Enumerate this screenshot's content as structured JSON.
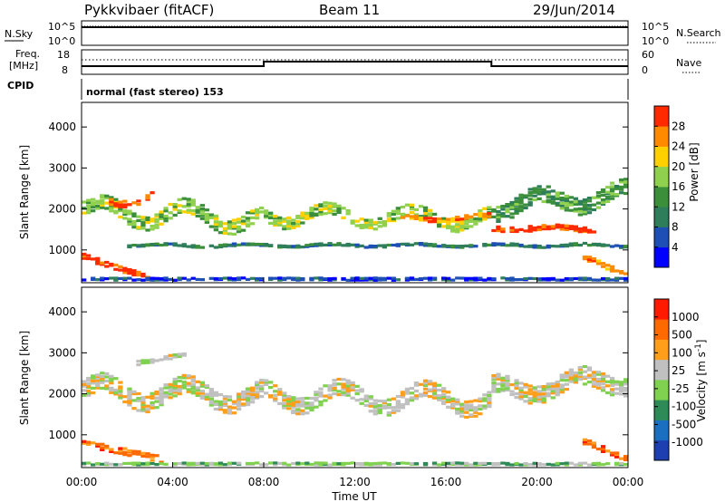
{
  "header": {
    "title": "Pykkvibaer (fitACF)",
    "beam": "Beam 11",
    "date": "29/Jun/2014"
  },
  "noise_panel": {
    "left_label": "N.Sky",
    "right_label": "N.Search",
    "left_ticks": [
      "10^5",
      "10^0"
    ],
    "right_ticks": [
      "10^5",
      "10^0"
    ]
  },
  "freq_panel": {
    "left_label_1": "Freq.",
    "left_label_2": "[MHz]",
    "right_label": "Nave",
    "left_ticks": [
      "18",
      "8"
    ],
    "right_ticks": [
      "60",
      "0"
    ]
  },
  "cpid": {
    "label": "CPID",
    "text": "normal (fast stereo) 153"
  },
  "colors": {
    "power": [
      "#0000ff",
      "#1d4fb5",
      "#2e7d5b",
      "#3b8f3b",
      "#8fd14f",
      "#ffd000",
      "#ff8a00",
      "#ff2a00"
    ],
    "velocity": [
      "#1d3fb0",
      "#1a6fc0",
      "#2e8b57",
      "#7fd14f",
      "#c0c0c0",
      "#ff9e1a",
      "#ff6a00",
      "#ff1a00"
    ]
  },
  "chart_data": [
    {
      "type": "heatmap",
      "name": "power-panel",
      "ylabel": "Slant Range [km]",
      "xlabel": "",
      "xlim": [
        0,
        24
      ],
      "ylim": [
        200,
        4600
      ],
      "yticks": [
        "1000",
        "2000",
        "3000",
        "4000"
      ],
      "xticks": [],
      "colorbar": {
        "label": "Power [dB]",
        "ticks": [
          "4",
          "8",
          "12",
          "16",
          "20",
          "24",
          "28"
        ]
      },
      "bands": [
        {
          "start": 0.0,
          "end": 8.0,
          "center_start": 2000,
          "center_end": 1800,
          "amp": 250,
          "width": 380,
          "level": 4
        },
        {
          "start": 1.2,
          "end": 3.2,
          "center_start": 2200,
          "center_end": 2400,
          "amp": 120,
          "width": 180,
          "level": 7
        },
        {
          "start": 8.0,
          "end": 18.0,
          "center_start": 1900,
          "center_end": 1800,
          "amp": 200,
          "width": 300,
          "level": 4
        },
        {
          "start": 14.0,
          "end": 18.0,
          "center_start": 1800,
          "center_end": 1850,
          "amp": 60,
          "width": 120,
          "level": 6
        },
        {
          "start": 18.0,
          "end": 22.5,
          "center_start": 1580,
          "center_end": 1560,
          "amp": 40,
          "width": 150,
          "level": 7
        },
        {
          "start": 18.0,
          "end": 24.0,
          "center_start": 2100,
          "center_end": 2400,
          "amp": 200,
          "width": 420,
          "level": 3
        },
        {
          "start": 0.0,
          "end": 3.0,
          "center_start": 900,
          "center_end": 350,
          "amp": 0,
          "width": 150,
          "level": 7
        },
        {
          "start": 0.0,
          "end": 24.0,
          "center_start": 330,
          "center_end": 330,
          "amp": 0,
          "width": 70,
          "level": 1
        },
        {
          "start": 2.0,
          "end": 24.0,
          "center_start": 1150,
          "center_end": 1150,
          "amp": 30,
          "width": 60,
          "level": 2
        },
        {
          "start": 22.0,
          "end": 24.0,
          "center_start": 900,
          "center_end": 400,
          "amp": 0,
          "width": 150,
          "level": 6
        }
      ]
    },
    {
      "type": "heatmap",
      "name": "velocity-panel",
      "ylabel": "Slant Range [km]",
      "xlabel": "Time UT",
      "xlim": [
        0,
        24
      ],
      "ylim": [
        200,
        4600
      ],
      "yticks": [
        "1000",
        "2000",
        "3000",
        "4000"
      ],
      "xticks": [
        "00:00",
        "04:00",
        "08:00",
        "12:00",
        "16:00",
        "20:00",
        "00:00"
      ],
      "colorbar": {
        "label": "Velocity [m s^-1]",
        "ticks": [
          "1000",
          "500",
          "100",
          "25",
          "-25",
          "-100",
          "-500",
          "-1000"
        ]
      },
      "bands": [
        {
          "start": 0.0,
          "end": 8.0,
          "center_start": 2100,
          "center_end": 2000,
          "amp": 250,
          "width": 450,
          "level": 4
        },
        {
          "start": 8.0,
          "end": 18.0,
          "center_start": 2000,
          "center_end": 1900,
          "amp": 250,
          "width": 420,
          "level": 4
        },
        {
          "start": 18.0,
          "end": 24.0,
          "center_start": 2100,
          "center_end": 2400,
          "amp": 200,
          "width": 450,
          "level": 4
        },
        {
          "start": 0.0,
          "end": 3.5,
          "center_start": 850,
          "center_end": 450,
          "amp": 0,
          "width": 180,
          "level": 6
        },
        {
          "start": 0.0,
          "end": 24.0,
          "center_start": 330,
          "center_end": 330,
          "amp": 0,
          "width": 60,
          "level": 3
        },
        {
          "start": 2.5,
          "end": 4.5,
          "center_start": 2800,
          "center_end": 3000,
          "amp": 0,
          "width": 120,
          "level": 4
        },
        {
          "start": 22.0,
          "end": 24.0,
          "center_start": 900,
          "center_end": 450,
          "amp": 0,
          "width": 150,
          "level": 6
        }
      ]
    }
  ]
}
